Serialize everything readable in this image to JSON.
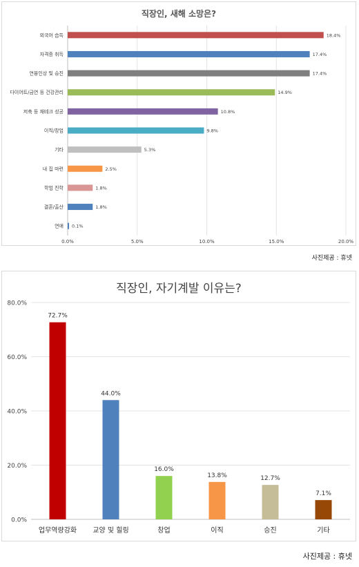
{
  "credit_1": "사진제공 : 휴넷",
  "credit_2": "사진제공 : 휴넷",
  "chart_data": [
    {
      "type": "bar",
      "orientation": "horizontal",
      "title": "직장인, 새해 소망은?",
      "categories": [
        "외국어 습득",
        "자격증 취득",
        "연봉인상 및 승진",
        "다이어트/금연 등 건강관리",
        "저축 등 재테크 성공",
        "이직/창업",
        "기타",
        "내 집 마련",
        "학업 진학",
        "결혼/출산",
        "연애"
      ],
      "values": [
        18.4,
        17.4,
        17.4,
        14.9,
        10.8,
        9.8,
        5.3,
        2.5,
        1.8,
        1.8,
        0.1
      ],
      "value_labels": [
        "18.4%",
        "17.4%",
        "17.4%",
        "14.9%",
        "10.8%",
        "9.8%",
        "5.3%",
        "2.5%",
        "1.8%",
        "1.8%",
        "0.1%"
      ],
      "colors": [
        "#c0504d",
        "#4f81bd",
        "#7f7f7f",
        "#9bbb59",
        "#8064a2",
        "#4bacc6",
        "#bfbfbf",
        "#f79646",
        "#d99694",
        "#4f81bd",
        "#4f81bd"
      ],
      "xlim": [
        0,
        20
      ],
      "ticks": [
        0,
        5,
        10,
        15,
        20
      ],
      "tick_labels": [
        "0.0%",
        "5.0%",
        "10.0%",
        "15.0%",
        "20.0%"
      ],
      "grid": true
    },
    {
      "type": "bar",
      "orientation": "vertical",
      "title": "직장인, 자기계발 이유는?",
      "categories": [
        "업무역량강화",
        "교양 및 힐링",
        "창업",
        "이직",
        "승진",
        "기타"
      ],
      "values": [
        72.7,
        44.0,
        16.0,
        13.8,
        12.7,
        7.1
      ],
      "value_labels": [
        "72.7%",
        "44.0%",
        "16.0%",
        "13.8%",
        "12.7%",
        "7.1%"
      ],
      "colors": [
        "#c00000",
        "#4f81bd",
        "#92d050",
        "#f79646",
        "#c4bd97",
        "#974706"
      ],
      "ylim": [
        0,
        80
      ],
      "ticks": [
        0,
        20,
        40,
        60,
        80
      ],
      "tick_labels": [
        "0.0%",
        "20.0%",
        "40.0%",
        "60.0%",
        "80.0%"
      ],
      "grid": true
    }
  ]
}
